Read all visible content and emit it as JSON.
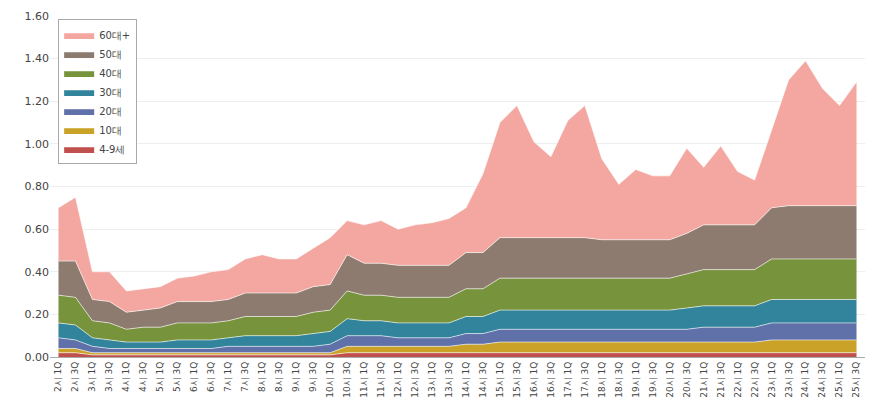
{
  "chart_data": {
    "type": "area",
    "stacked": true,
    "categories": [
      "2시 1Q",
      "2시 3Q",
      "3시 1Q",
      "3시 3Q",
      "4시 1Q",
      "4시 3Q",
      "5시 1Q",
      "5시 3Q",
      "6시 1Q",
      "6시 3Q",
      "7시 1Q",
      "7시 3Q",
      "8시 1Q",
      "8시 3Q",
      "9시 1Q",
      "9시 3Q",
      "10시 1Q",
      "10시 3Q",
      "11시 1Q",
      "11시 3Q",
      "12시 1Q",
      "12시 3Q",
      "13시 1Q",
      "13시 3Q",
      "14시 1Q",
      "14시 3Q",
      "15시 1Q",
      "15시 3Q",
      "16시 1Q",
      "16시 3Q",
      "17시 1Q",
      "17시 3Q",
      "18시 1Q",
      "18시 3Q",
      "19시 1Q",
      "19시 3Q",
      "20시 1Q",
      "20시 3Q",
      "21시 1Q",
      "21시 3Q",
      "22시 1Q",
      "22시 3Q",
      "23시 1Q",
      "23시 3Q",
      "24시 1Q",
      "24시 3Q",
      "25시 1Q",
      "25시 3Q"
    ],
    "series": [
      {
        "name": "4-9세",
        "color": "#c0504d",
        "values": [
          0.02,
          0.02,
          0.01,
          0.01,
          0.01,
          0.01,
          0.01,
          0.01,
          0.01,
          0.01,
          0.01,
          0.01,
          0.01,
          0.01,
          0.01,
          0.01,
          0.01,
          0.02,
          0.02,
          0.02,
          0.02,
          0.02,
          0.02,
          0.02,
          0.02,
          0.02,
          0.02,
          0.02,
          0.02,
          0.02,
          0.02,
          0.02,
          0.02,
          0.02,
          0.02,
          0.02,
          0.02,
          0.02,
          0.02,
          0.02,
          0.02,
          0.02,
          0.02,
          0.02,
          0.02,
          0.02,
          0.02,
          0.02
        ]
      },
      {
        "name": "10대",
        "color": "#c9a227",
        "values": [
          0.02,
          0.02,
          0.01,
          0.01,
          0.01,
          0.01,
          0.01,
          0.01,
          0.01,
          0.01,
          0.01,
          0.01,
          0.01,
          0.01,
          0.01,
          0.01,
          0.01,
          0.03,
          0.03,
          0.03,
          0.03,
          0.03,
          0.03,
          0.03,
          0.04,
          0.04,
          0.05,
          0.05,
          0.05,
          0.05,
          0.05,
          0.05,
          0.05,
          0.05,
          0.05,
          0.05,
          0.05,
          0.05,
          0.05,
          0.05,
          0.05,
          0.05,
          0.06,
          0.06,
          0.06,
          0.06,
          0.06,
          0.06
        ]
      },
      {
        "name": "20대",
        "color": "#6070a8",
        "values": [
          0.05,
          0.04,
          0.03,
          0.02,
          0.02,
          0.02,
          0.02,
          0.02,
          0.02,
          0.02,
          0.03,
          0.03,
          0.03,
          0.03,
          0.03,
          0.03,
          0.04,
          0.05,
          0.05,
          0.05,
          0.04,
          0.04,
          0.04,
          0.04,
          0.05,
          0.05,
          0.06,
          0.06,
          0.06,
          0.06,
          0.06,
          0.06,
          0.06,
          0.06,
          0.06,
          0.06,
          0.06,
          0.06,
          0.07,
          0.07,
          0.07,
          0.07,
          0.08,
          0.08,
          0.08,
          0.08,
          0.08,
          0.08
        ]
      },
      {
        "name": "30대",
        "color": "#31849b",
        "values": [
          0.07,
          0.07,
          0.04,
          0.04,
          0.03,
          0.03,
          0.03,
          0.04,
          0.04,
          0.04,
          0.04,
          0.05,
          0.05,
          0.05,
          0.05,
          0.06,
          0.06,
          0.08,
          0.07,
          0.07,
          0.07,
          0.07,
          0.07,
          0.07,
          0.08,
          0.08,
          0.09,
          0.09,
          0.09,
          0.09,
          0.09,
          0.09,
          0.09,
          0.09,
          0.09,
          0.09,
          0.09,
          0.1,
          0.1,
          0.1,
          0.1,
          0.1,
          0.11,
          0.11,
          0.11,
          0.11,
          0.11,
          0.11
        ]
      },
      {
        "name": "40대",
        "color": "#77933c",
        "values": [
          0.13,
          0.13,
          0.08,
          0.08,
          0.06,
          0.07,
          0.07,
          0.08,
          0.08,
          0.08,
          0.08,
          0.09,
          0.09,
          0.09,
          0.09,
          0.1,
          0.1,
          0.13,
          0.12,
          0.12,
          0.12,
          0.12,
          0.12,
          0.12,
          0.13,
          0.13,
          0.15,
          0.15,
          0.15,
          0.15,
          0.15,
          0.15,
          0.15,
          0.15,
          0.15,
          0.15,
          0.15,
          0.16,
          0.17,
          0.17,
          0.17,
          0.17,
          0.19,
          0.19,
          0.19,
          0.19,
          0.19,
          0.19
        ]
      },
      {
        "name": "50대",
        "color": "#8c7b6e",
        "values": [
          0.16,
          0.17,
          0.1,
          0.1,
          0.08,
          0.08,
          0.09,
          0.1,
          0.1,
          0.1,
          0.1,
          0.11,
          0.11,
          0.11,
          0.11,
          0.12,
          0.12,
          0.17,
          0.15,
          0.15,
          0.15,
          0.15,
          0.15,
          0.15,
          0.17,
          0.17,
          0.19,
          0.19,
          0.19,
          0.19,
          0.19,
          0.19,
          0.18,
          0.18,
          0.18,
          0.18,
          0.18,
          0.19,
          0.21,
          0.21,
          0.21,
          0.21,
          0.24,
          0.25,
          0.25,
          0.25,
          0.25,
          0.25
        ]
      },
      {
        "name": "60대+",
        "color": "#f4a7a0",
        "values": [
          0.25,
          0.3,
          0.13,
          0.14,
          0.1,
          0.1,
          0.1,
          0.11,
          0.12,
          0.14,
          0.14,
          0.16,
          0.18,
          0.16,
          0.16,
          0.18,
          0.22,
          0.16,
          0.18,
          0.2,
          0.17,
          0.19,
          0.2,
          0.22,
          0.21,
          0.37,
          0.54,
          0.62,
          0.45,
          0.38,
          0.55,
          0.62,
          0.38,
          0.26,
          0.33,
          0.3,
          0.3,
          0.4,
          0.27,
          0.37,
          0.25,
          0.21,
          0.36,
          0.59,
          0.68,
          0.55,
          0.47,
          0.58
        ]
      }
    ],
    "ylim": [
      0,
      1.6
    ],
    "yticks": [
      {
        "value": 0,
        "label": "0.00"
      },
      {
        "value": 0.2,
        "label": "0.20"
      },
      {
        "value": 0.4,
        "label": "0.40"
      },
      {
        "value": 0.6,
        "label": "0.60"
      },
      {
        "value": 0.8,
        "label": "0.80"
      },
      {
        "value": 1.0,
        "label": "1.00"
      },
      {
        "value": 1.2,
        "label": "1.20"
      },
      {
        "value": 1.4,
        "label": "1.40"
      },
      {
        "value": 1.6,
        "label": "1.60"
      }
    ],
    "grid": true,
    "legend": "upper left"
  }
}
